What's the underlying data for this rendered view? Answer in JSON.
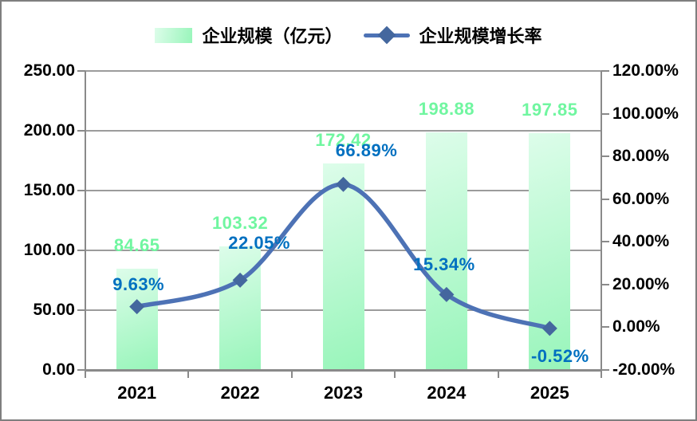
{
  "legend": {
    "bar_label": "企业规模（亿元）",
    "line_label": "企业规模增长率"
  },
  "chart_data": {
    "type": "bar+line combo",
    "categories": [
      "2021",
      "2022",
      "2023",
      "2024",
      "2025"
    ],
    "series": [
      {
        "name": "企业规模（亿元）",
        "type": "bar",
        "axis": "left",
        "values": [
          84.65,
          103.32,
          172.42,
          198.88,
          197.85
        ],
        "labels": [
          "84.65",
          "103.32",
          "172.42",
          "198.88",
          "197.85"
        ],
        "label_dy": -29
      },
      {
        "name": "企业规模增长率",
        "type": "line",
        "axis": "right",
        "smooth": true,
        "marker": "diamond",
        "values": [
          9.63,
          22.05,
          66.89,
          15.34,
          -0.52
        ],
        "labels": [
          "9.63%",
          "22.05%",
          "66.89%",
          "15.34%",
          "-0.52%"
        ],
        "label_offsets": [
          [
            2,
            -28
          ],
          [
            24,
            -46
          ],
          [
            29,
            -42
          ],
          [
            -3,
            -37
          ],
          [
            13,
            35
          ]
        ]
      }
    ],
    "left_axis": {
      "min": 0,
      "max": 250,
      "step": 50,
      "ticks": [
        "250.00",
        "200.00",
        "150.00",
        "100.00",
        "50.00",
        "0.00"
      ]
    },
    "right_axis": {
      "min": -20,
      "max": 120,
      "step": 20,
      "ticks": [
        "120.00%",
        "100.00%",
        "80.00%",
        "60.00%",
        "40.00%",
        "20.00%",
        "0.00%",
        "-20.00%"
      ]
    },
    "grid": "horizontal gridlines at left-axis intervals",
    "legend_position": "top center",
    "title": ""
  },
  "colors": {
    "bar_gradient_top": "#ddfdea",
    "bar_gradient_bottom": "#98f5ba",
    "bar_value_label": "#70f6a0",
    "line": "#4d72b5",
    "marker": "#44679e",
    "line_value_label": "#0070c0",
    "gridline": "#9c9c9c",
    "axis_line": "#8a8a8a",
    "text": "#000000",
    "frame_border": "#7f7f7f",
    "background": "#ffffff"
  }
}
